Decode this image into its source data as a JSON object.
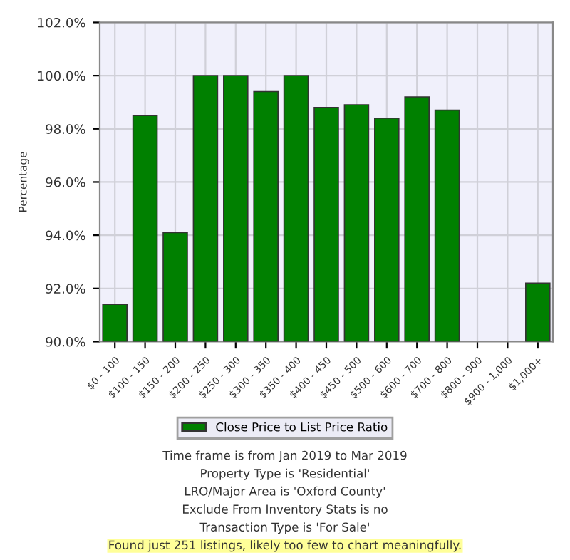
{
  "chart_data": {
    "type": "bar",
    "ylabel": "Percentage",
    "categories": [
      "$0 - 100",
      "$100 - 150",
      "$150 - 200",
      "$200 - 250",
      "$250 - 300",
      "$300 - 350",
      "$350 - 400",
      "$400 - 450",
      "$450 - 500",
      "$500 - 600",
      "$600 - 700",
      "$700 - 800",
      "$800 - 900",
      "$900 - 1,000",
      "$1,000+"
    ],
    "series": [
      {
        "name": "Close Price to List Price Ratio",
        "color": "#008000",
        "values": [
          91.4,
          98.5,
          94.1,
          100.0,
          100.0,
          99.4,
          100.0,
          98.8,
          98.9,
          98.4,
          99.2,
          98.7,
          null,
          null,
          92.2
        ]
      }
    ],
    "ylim": [
      90,
      102
    ],
    "yticks": [
      {
        "value": 90,
        "label": "90.0%"
      },
      {
        "value": 92,
        "label": "92.0%"
      },
      {
        "value": 94,
        "label": "94.0%"
      },
      {
        "value": 96,
        "label": "96.0%"
      },
      {
        "value": 98,
        "label": "98.0%"
      },
      {
        "value": 100,
        "label": "100.0%"
      },
      {
        "value": 102,
        "label": "102.0%"
      }
    ],
    "grid": true,
    "legend": "bottom",
    "annotations": [
      "Time frame is from Jan 2019 to Mar 2019",
      "Property Type is 'Residential'",
      "LRO/Major Area is 'Oxford County'",
      "Exclude From Inventory Stats is no",
      "Transaction Type is 'For Sale'",
      "Found just 251 listings, likely too few to chart meaningfully."
    ]
  }
}
